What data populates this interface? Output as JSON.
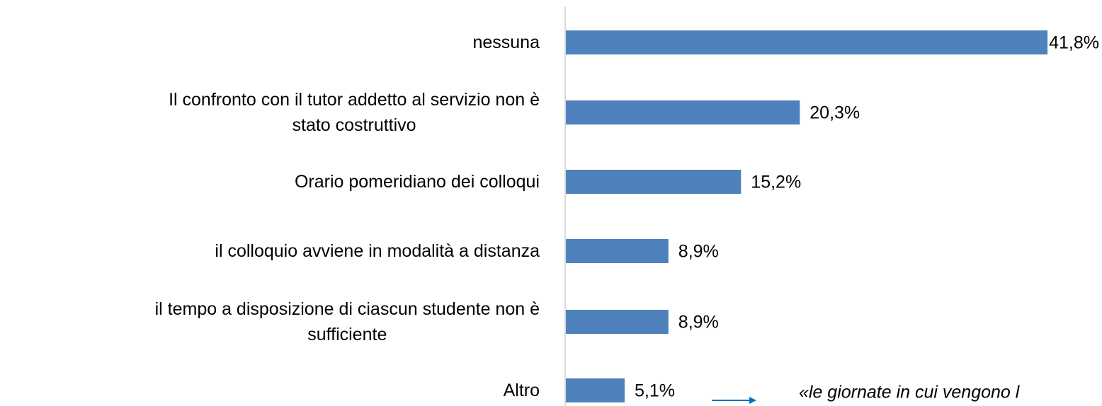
{
  "chart_data": {
    "type": "bar",
    "orientation": "horizontal",
    "categories": [
      "nessuna",
      "Il confronto con il tutor addetto al servizio non è\nstato costruttivo",
      "Orario pomeridiano dei colloqui",
      "il colloquio avviene in modalità a distanza",
      "il tempo a disposizione di ciascun studente non è\nsufficiente",
      "Altro"
    ],
    "values": [
      41.8,
      20.3,
      15.2,
      8.9,
      8.9,
      5.1
    ],
    "value_labels": [
      "41,8%",
      "20,3%",
      "15,2%",
      "8,9%",
      "8,9%",
      "5,1%"
    ],
    "color": "#4f81bd",
    "annotation": "«le giornate in cui vengono l"
  }
}
